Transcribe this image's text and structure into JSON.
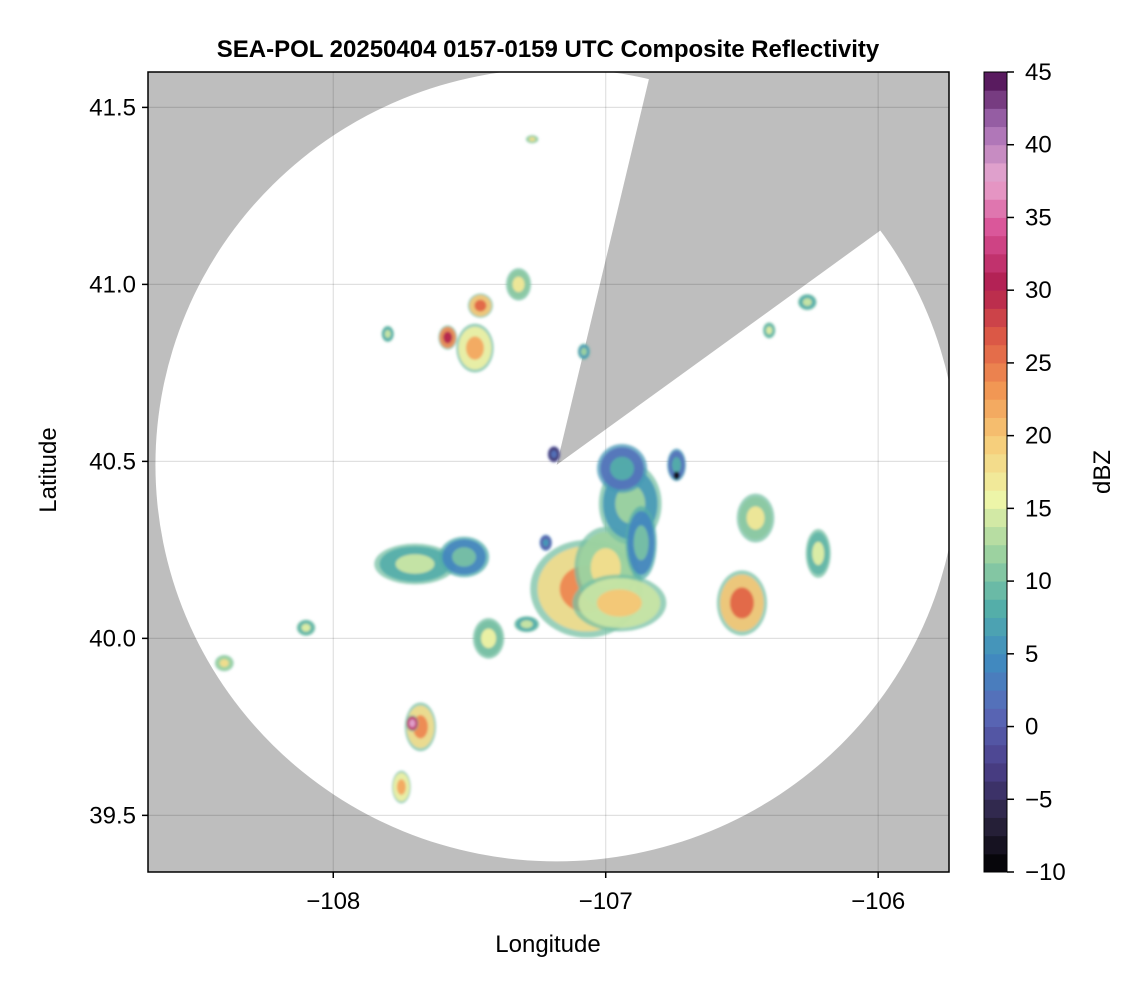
{
  "chart_data": {
    "type": "heatmap",
    "title": "SEA-POL 20250404 0157-0159 UTC Composite Reflectivity",
    "xlabel": "Longitude",
    "ylabel": "Latitude",
    "xlim": [
      -108.68,
      -105.74
    ],
    "ylim": [
      39.34,
      41.6
    ],
    "x_ticks": [
      -108,
      -107,
      -106
    ],
    "x_tick_labels": [
      "−108",
      "−107",
      "−106"
    ],
    "y_ticks": [
      39.5,
      40.0,
      40.5,
      41.0,
      41.5
    ],
    "y_tick_labels": [
      "39.5",
      "40.0",
      "40.5",
      "41.0",
      "41.5"
    ],
    "grid": true,
    "colorbar": {
      "label": "dBZ",
      "range": [
        -10,
        45
      ],
      "ticks": [
        -10,
        -5,
        0,
        5,
        10,
        15,
        20,
        25,
        30,
        35,
        40,
        45
      ],
      "tick_labels": [
        "−10",
        "−5",
        "0",
        "5",
        "10",
        "15",
        "20",
        "25",
        "30",
        "35",
        "40",
        "45"
      ],
      "colors": [
        "#000000",
        "#2b2440",
        "#4b3f8a",
        "#5a68b8",
        "#3f8cc0",
        "#55b0a8",
        "#9fd3a0",
        "#eef5a8",
        "#f6d07c",
        "#f29955",
        "#de5b45",
        "#b01e50",
        "#d84e94",
        "#e8a8d0",
        "#a26bb2",
        "#4a0a4e"
      ]
    },
    "background_no_data_color": "#bebebe",
    "coverage_color": "#ffffff",
    "radar_center": {
      "lon": -107.18,
      "lat": 40.49
    },
    "radar_range_deg_lat": 1.12,
    "blocked_sector": {
      "lon_a": -106.86,
      "lat_a": 41.52,
      "lon_b": -106.05,
      "lat_b": 41.12
    },
    "echo_cells": [
      {
        "lon": -107.07,
        "lat": 40.14,
        "rlon": 0.18,
        "rlat": 0.12,
        "dbz": 24
      },
      {
        "lon": -107.0,
        "lat": 40.2,
        "rlon": 0.1,
        "rlat": 0.1,
        "dbz": 18
      },
      {
        "lon": -106.95,
        "lat": 40.1,
        "rlon": 0.15,
        "rlat": 0.07,
        "dbz": 20
      },
      {
        "lon": -106.91,
        "lat": 40.38,
        "rlon": 0.1,
        "rlat": 0.1,
        "dbz": 12
      },
      {
        "lon": -106.94,
        "lat": 40.48,
        "rlon": 0.08,
        "rlat": 0.06,
        "dbz": 8
      },
      {
        "lon": -106.87,
        "lat": 40.27,
        "rlon": 0.05,
        "rlat": 0.09,
        "dbz": 10
      },
      {
        "lon": -107.7,
        "lat": 40.21,
        "rlon": 0.13,
        "rlat": 0.05,
        "dbz": 14
      },
      {
        "lon": -107.52,
        "lat": 40.23,
        "rlon": 0.08,
        "rlat": 0.05,
        "dbz": 10
      },
      {
        "lon": -106.5,
        "lat": 40.1,
        "rlon": 0.08,
        "rlat": 0.08,
        "dbz": 26
      },
      {
        "lon": -106.45,
        "lat": 40.34,
        "rlon": 0.06,
        "rlat": 0.06,
        "dbz": 17
      },
      {
        "lon": -106.22,
        "lat": 40.24,
        "rlon": 0.04,
        "rlat": 0.06,
        "dbz": 15
      },
      {
        "lon": -107.48,
        "lat": 40.82,
        "rlon": 0.06,
        "rlat": 0.06,
        "dbz": 22
      },
      {
        "lon": -107.46,
        "lat": 40.94,
        "rlon": 0.04,
        "rlat": 0.03,
        "dbz": 26
      },
      {
        "lon": -107.32,
        "lat": 41.0,
        "rlon": 0.04,
        "rlat": 0.04,
        "dbz": 17
      },
      {
        "lon": -107.58,
        "lat": 40.85,
        "rlon": 0.03,
        "rlat": 0.03,
        "dbz": 30
      },
      {
        "lon": -107.43,
        "lat": 40.0,
        "rlon": 0.05,
        "rlat": 0.05,
        "dbz": 16
      },
      {
        "lon": -107.68,
        "lat": 39.75,
        "rlon": 0.05,
        "rlat": 0.06,
        "dbz": 24
      },
      {
        "lon": -107.71,
        "lat": 39.76,
        "rlon": 0.02,
        "rlat": 0.02,
        "dbz": 38
      },
      {
        "lon": -107.75,
        "lat": 39.58,
        "rlon": 0.03,
        "rlat": 0.04,
        "dbz": 22
      },
      {
        "lon": -108.4,
        "lat": 39.93,
        "rlon": 0.03,
        "rlat": 0.02,
        "dbz": 18
      },
      {
        "lon": -108.1,
        "lat": 40.03,
        "rlon": 0.03,
        "rlat": 0.02,
        "dbz": 15
      },
      {
        "lon": -107.8,
        "lat": 40.86,
        "rlon": 0.02,
        "rlat": 0.02,
        "dbz": 14
      },
      {
        "lon": -107.27,
        "lat": 41.41,
        "rlon": 0.02,
        "rlat": 0.01,
        "dbz": 18
      },
      {
        "lon": -107.19,
        "lat": 40.52,
        "rlon": 0.02,
        "rlat": 0.02,
        "dbz": 2
      },
      {
        "lon": -106.26,
        "lat": 40.95,
        "rlon": 0.03,
        "rlat": 0.02,
        "dbz": 14
      },
      {
        "lon": -106.4,
        "lat": 40.87,
        "rlon": 0.02,
        "rlat": 0.02,
        "dbz": 15
      },
      {
        "lon": -106.74,
        "lat": 40.49,
        "rlon": 0.03,
        "rlat": 0.04,
        "dbz": 8
      },
      {
        "lon": -106.74,
        "lat": 40.46,
        "rlon": 0.01,
        "rlat": 0.01,
        "dbz": -8
      },
      {
        "lon": -107.08,
        "lat": 40.81,
        "rlon": 0.02,
        "rlat": 0.02,
        "dbz": 12
      },
      {
        "lon": -107.29,
        "lat": 40.04,
        "rlon": 0.04,
        "rlat": 0.02,
        "dbz": 14
      },
      {
        "lon": -107.22,
        "lat": 40.27,
        "rlon": 0.02,
        "rlat": 0.02,
        "dbz": 6
      }
    ]
  }
}
